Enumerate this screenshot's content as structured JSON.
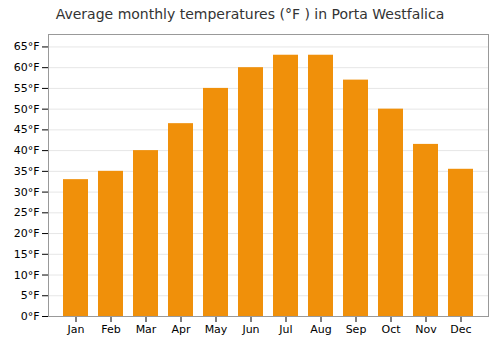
{
  "chart_data": {
    "type": "bar",
    "title": "Average monthly temperatures (°F ) in Porta Westfalica",
    "categories": [
      "Jan",
      "Feb",
      "Mar",
      "Apr",
      "May",
      "Jun",
      "Jul",
      "Aug",
      "Sep",
      "Oct",
      "Nov",
      "Dec"
    ],
    "values": [
      33,
      35,
      40,
      46.5,
      55,
      60,
      63,
      63,
      57,
      50,
      41.5,
      35.5
    ],
    "color": "#F0900A",
    "ylim": [
      0,
      68
    ],
    "yticks": [
      {
        "value": 0,
        "label": "0°F"
      },
      {
        "value": 5,
        "label": "5°F"
      },
      {
        "value": 10,
        "label": "10°F"
      },
      {
        "value": 15,
        "label": "15°F"
      },
      {
        "value": 20,
        "label": "20°F"
      },
      {
        "value": 25,
        "label": "25°F"
      },
      {
        "value": 30,
        "label": "30°F"
      },
      {
        "value": 35,
        "label": "35°F"
      },
      {
        "value": 40,
        "label": "40°F"
      },
      {
        "value": 45,
        "label": "45°F"
      },
      {
        "value": 50,
        "label": "50°F"
      },
      {
        "value": 55,
        "label": "55°F"
      },
      {
        "value": 60,
        "label": "60°F"
      },
      {
        "value": 65,
        "label": "65°F"
      }
    ],
    "grid": true
  }
}
